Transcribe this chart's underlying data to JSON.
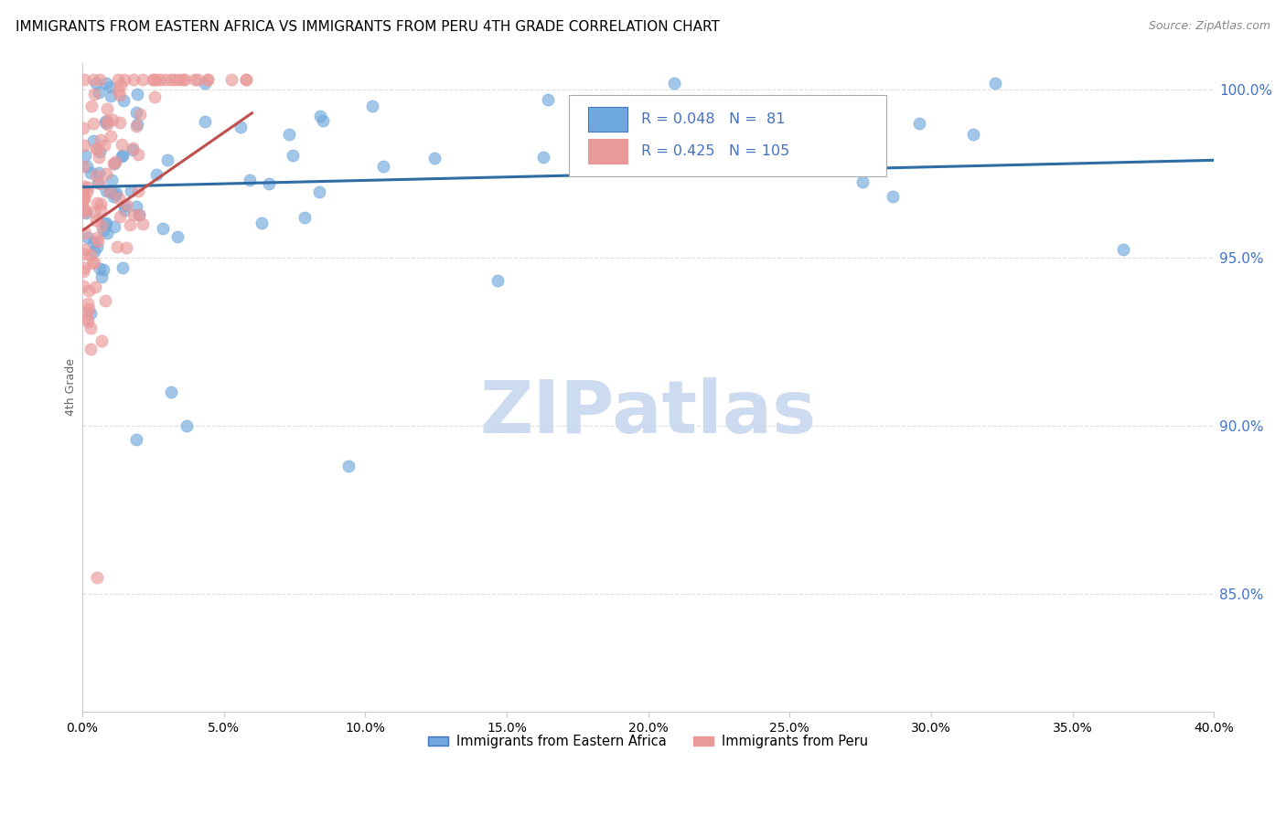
{
  "title": "IMMIGRANTS FROM EASTERN AFRICA VS IMMIGRANTS FROM PERU 4TH GRADE CORRELATION CHART",
  "source": "Source: ZipAtlas.com",
  "ylabel": "4th Grade",
  "ytick_labels": [
    "100.0%",
    "95.0%",
    "90.0%",
    "85.0%"
  ],
  "ytick_values": [
    1.0,
    0.95,
    0.9,
    0.85
  ],
  "xlim": [
    0.0,
    0.4
  ],
  "ylim": [
    0.815,
    1.008
  ],
  "blue_R": 0.048,
  "blue_N": 81,
  "pink_R": 0.425,
  "pink_N": 105,
  "blue_color": "#6fa8dc",
  "pink_color": "#ea9999",
  "blue_line_color": "#2e6da4",
  "pink_line_color": "#c0504d",
  "legend_label_blue": "Immigrants from Eastern Africa",
  "legend_label_pink": "Immigrants from Peru",
  "watermark": "ZIPatlas",
  "watermark_color": "#c8d8ef"
}
